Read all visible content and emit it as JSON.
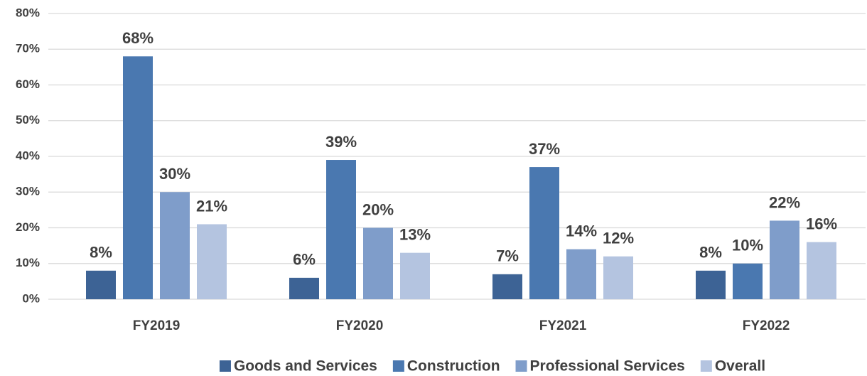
{
  "chart_data": {
    "type": "bar",
    "categories": [
      "FY2019",
      "FY2020",
      "FY2021",
      "FY2022"
    ],
    "series": [
      {
        "name": "Goods and Services",
        "color": "#3d6395",
        "values": [
          8,
          6,
          7,
          8
        ],
        "value_labels": [
          "8%",
          "6%",
          "7%",
          "8%"
        ]
      },
      {
        "name": "Construction",
        "color": "#4a78b0",
        "values": [
          68,
          39,
          37,
          10
        ],
        "value_labels": [
          "68%",
          "39%",
          "37%",
          "10%"
        ]
      },
      {
        "name": "Professional Services",
        "color": "#7f9dca",
        "values": [
          30,
          20,
          14,
          22
        ],
        "value_labels": [
          "30%",
          "20%",
          "14%",
          "22%"
        ]
      },
      {
        "name": "Overall",
        "color": "#b4c4e0",
        "values": [
          21,
          13,
          12,
          16
        ],
        "value_labels": [
          "21%",
          "13%",
          "12%",
          "16%"
        ]
      }
    ],
    "ylim": [
      0,
      80
    ],
    "yticks": [
      {
        "value": 0,
        "label": "0%"
      },
      {
        "value": 10,
        "label": "10%"
      },
      {
        "value": 20,
        "label": "20%"
      },
      {
        "value": 30,
        "label": "30%"
      },
      {
        "value": 40,
        "label": "40%"
      },
      {
        "value": 50,
        "label": "50%"
      },
      {
        "value": 60,
        "label": "60%"
      },
      {
        "value": 70,
        "label": "70%"
      },
      {
        "value": 80,
        "label": "80%"
      }
    ],
    "grid": true,
    "legend": "bottom"
  }
}
